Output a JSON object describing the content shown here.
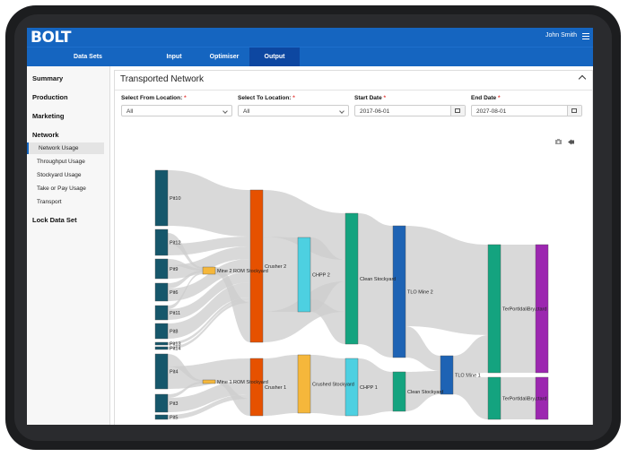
{
  "app": {
    "logo": "BOLT",
    "user": "John Smith"
  },
  "nav": {
    "items": [
      {
        "label": "Data Sets"
      },
      {
        "label": "Input"
      },
      {
        "label": "Optimiser"
      },
      {
        "label": "Output"
      }
    ]
  },
  "sidebar": {
    "sections": [
      "Summary",
      "Production",
      "Marketing",
      "Network",
      "Lock Data Set"
    ],
    "network_items": [
      "Network Usage",
      "Throughput Usage",
      "Stockyard Usage",
      "Take or Pay Usage",
      "Transport"
    ]
  },
  "panel": {
    "title": "Transported Network"
  },
  "filters": {
    "from": {
      "label": "Select From Location:",
      "value": "All"
    },
    "to": {
      "label": "Select To Location:",
      "value": "All"
    },
    "start": {
      "label": "Start Date",
      "value": "2017-06-01"
    },
    "end": {
      "label": "End Date",
      "value": "2027-08-01"
    },
    "required_mark": "*"
  },
  "colors": {
    "primary": "#1565c0",
    "active_nav": "#0d47a1",
    "pit": "#16576b",
    "rom": "#f5b73b",
    "crusher": "#e65100",
    "chpp": "#4dd0e1",
    "stockyard": "#f5b73b",
    "clean": "#14a37f",
    "tlo": "#1e63b4",
    "terminal": "#14a37f",
    "port": "#9c27b0",
    "link": "#cccccc"
  },
  "sankey": {
    "nodes": [
      {
        "id": "pit10",
        "label": "Pit10"
      },
      {
        "id": "pit12",
        "label": "Pit12"
      },
      {
        "id": "pit9",
        "label": "Pit9"
      },
      {
        "id": "pit6",
        "label": "Pit6"
      },
      {
        "id": "pit11",
        "label": "Pit11"
      },
      {
        "id": "pit8",
        "label": "Pit8"
      },
      {
        "id": "pit13",
        "label": "Pit13"
      },
      {
        "id": "pit14",
        "label": "Pit14"
      },
      {
        "id": "pit4",
        "label": "Pit4"
      },
      {
        "id": "pit3",
        "label": "Pit3"
      },
      {
        "id": "pit5",
        "label": "Pit5"
      },
      {
        "id": "rom2",
        "label": "Mine 2 ROM Stockyard"
      },
      {
        "id": "rom1",
        "label": "Mine 1 ROM Stockyard"
      },
      {
        "id": "crusher2",
        "label": "Crusher 2"
      },
      {
        "id": "crusher1",
        "label": "Crusher 1"
      },
      {
        "id": "chpp2",
        "label": "CHPP 2"
      },
      {
        "id": "crushedsy",
        "label": "Crushed Stockyard"
      },
      {
        "id": "cleansy2",
        "label": "Clean Stockyard"
      },
      {
        "id": "chpp1",
        "label": "CHPP 1"
      },
      {
        "id": "tlo2",
        "label": "TLO Mine 2"
      },
      {
        "id": "cleansy1",
        "label": "Clean Stockyard"
      },
      {
        "id": "tlo1",
        "label": "TLO Mine 1"
      },
      {
        "id": "termA",
        "label": "TerPortIdaliBry.ctard"
      },
      {
        "id": "termB",
        "label": "TerPortIdaliBry.ctard"
      },
      {
        "id": "portA",
        "label": ""
      },
      {
        "id": "portB",
        "label": ""
      }
    ]
  }
}
